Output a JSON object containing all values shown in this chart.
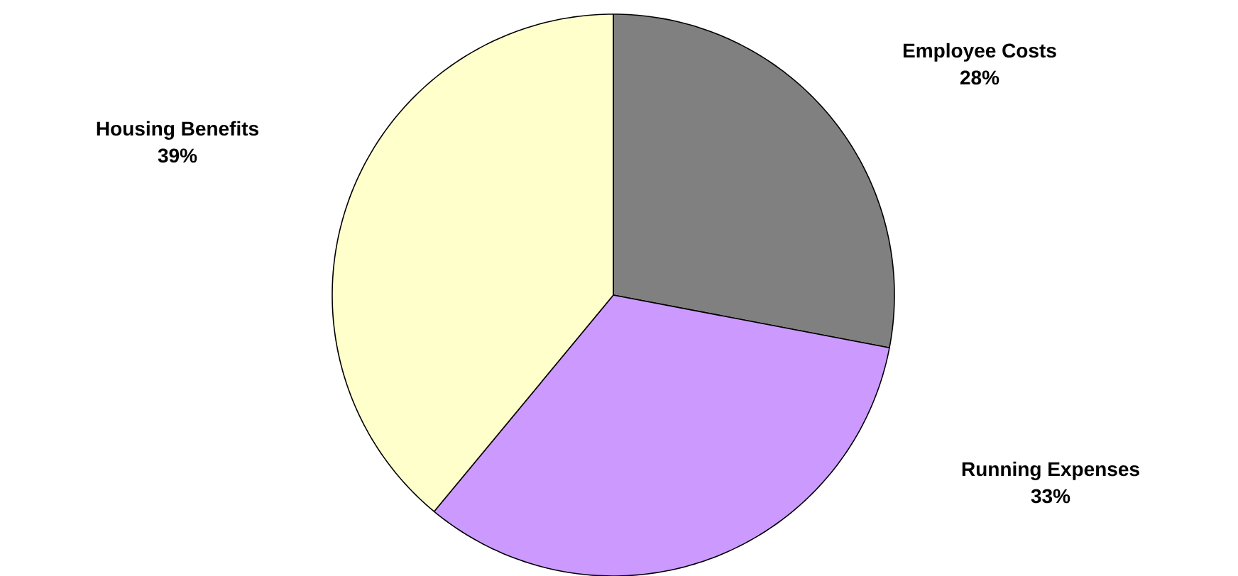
{
  "chart_data": {
    "type": "pie",
    "categories": [
      "Employee Costs",
      "Running Expenses",
      "Housing Benefits"
    ],
    "values": [
      28,
      33,
      39
    ],
    "colors": [
      "#808080",
      "#cc99ff",
      "#ffffcc"
    ],
    "value_labels": [
      "28%",
      "33%",
      "39%"
    ]
  }
}
